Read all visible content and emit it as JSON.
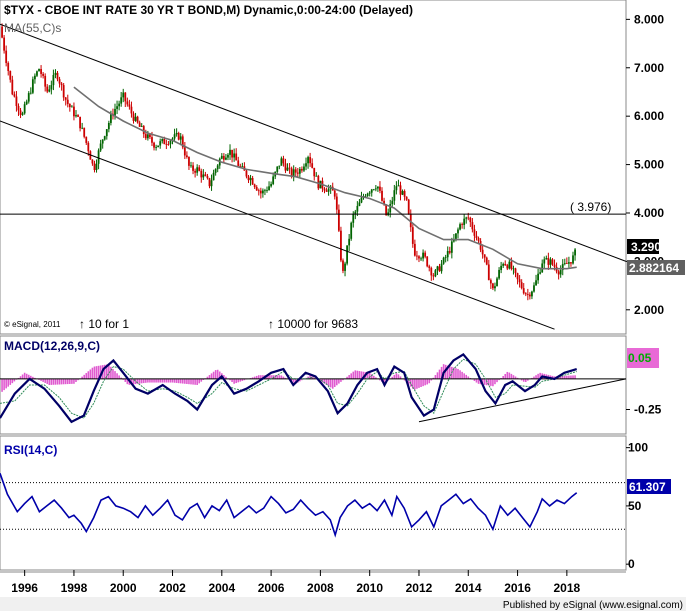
{
  "chart_data": [
    {
      "type": "candlestick",
      "title": "$TYX - CBOE INT RATE 30 YR T BOND,M) Dynamic,0:00-24:00 (Delayed)",
      "overlay_label": "MA(55,C)s",
      "copyright": "© eSignal, 2011",
      "split_notes": [
        "↑ 10 for 1",
        "↑ 10000 for 9683"
      ],
      "ylim": [
        1.5,
        8.4
      ],
      "yticks": [
        "8.000",
        "7.000",
        "6.000",
        "5.000",
        "4.000",
        "3.000",
        "2.000"
      ],
      "horizontal_level": 3.976,
      "horizontal_level_label": "( 3.976)",
      "last_price_label": "3.290",
      "ma_value_label": "2.882164",
      "channel_lines": {
        "upper": [
          [
            1995.0,
            7.9
          ],
          [
            2020.4,
            3.0
          ]
        ],
        "lower": [
          [
            1995.0,
            5.9
          ],
          [
            2017.5,
            1.6
          ]
        ]
      },
      "price_path": [
        [
          1995.0,
          7.85
        ],
        [
          1995.5,
          6.5
        ],
        [
          1995.9,
          6.0
        ],
        [
          1996.4,
          6.8
        ],
        [
          1996.6,
          7.0
        ],
        [
          1996.9,
          6.5
        ],
        [
          1997.3,
          6.9
        ],
        [
          1997.7,
          6.3
        ],
        [
          1998.2,
          5.9
        ],
        [
          1998.6,
          5.3
        ],
        [
          1998.8,
          4.9
        ],
        [
          1999.2,
          5.6
        ],
        [
          1999.6,
          6.1
        ],
        [
          2000.0,
          6.4
        ],
        [
          2000.5,
          5.9
        ],
        [
          2000.9,
          5.6
        ],
        [
          2001.3,
          5.4
        ],
        [
          2001.8,
          5.5
        ],
        [
          2002.3,
          5.6
        ],
        [
          2002.7,
          4.9
        ],
        [
          2003.0,
          4.9
        ],
        [
          2003.5,
          4.6
        ],
        [
          2003.9,
          5.1
        ],
        [
          2004.3,
          5.3
        ],
        [
          2004.8,
          4.9
        ],
        [
          2005.2,
          4.7
        ],
        [
          2005.6,
          4.4
        ],
        [
          2006.0,
          4.6
        ],
        [
          2006.4,
          5.1
        ],
        [
          2006.8,
          4.8
        ],
        [
          2007.2,
          4.9
        ],
        [
          2007.5,
          5.2
        ],
        [
          2007.9,
          4.6
        ],
        [
          2008.3,
          4.5
        ],
        [
          2008.6,
          4.4
        ],
        [
          2008.9,
          2.7
        ],
        [
          2009.3,
          3.9
        ],
        [
          2009.8,
          4.4
        ],
        [
          2010.3,
          4.6
        ],
        [
          2010.7,
          3.9
        ],
        [
          2011.1,
          4.6
        ],
        [
          2011.5,
          4.2
        ],
        [
          2011.8,
          3.2
        ],
        [
          2012.2,
          3.1
        ],
        [
          2012.6,
          2.7
        ],
        [
          2013.0,
          3.0
        ],
        [
          2013.4,
          3.4
        ],
        [
          2013.7,
          3.8
        ],
        [
          2014.0,
          3.9
        ],
        [
          2014.5,
          3.3
        ],
        [
          2015.0,
          2.4
        ],
        [
          2015.4,
          3.0
        ],
        [
          2015.7,
          2.9
        ],
        [
          2016.0,
          2.6
        ],
        [
          2016.4,
          2.3
        ],
        [
          2016.7,
          2.5
        ],
        [
          2017.0,
          3.0
        ],
        [
          2017.3,
          3.0
        ],
        [
          2017.7,
          2.8
        ],
        [
          2018.1,
          3.0
        ],
        [
          2018.3,
          3.1
        ],
        [
          2018.4,
          3.29
        ]
      ],
      "ma55_path": [
        [
          1998.0,
          6.6
        ],
        [
          1999.0,
          6.2
        ],
        [
          2000.0,
          5.9
        ],
        [
          2001.0,
          5.65
        ],
        [
          2002.0,
          5.5
        ],
        [
          2003.0,
          5.25
        ],
        [
          2004.0,
          5.05
        ],
        [
          2005.0,
          4.9
        ],
        [
          2006.0,
          4.82
        ],
        [
          2007.0,
          4.75
        ],
        [
          2008.0,
          4.6
        ],
        [
          2009.0,
          4.42
        ],
        [
          2010.0,
          4.3
        ],
        [
          2011.0,
          4.1
        ],
        [
          2012.0,
          3.68
        ],
        [
          2013.0,
          3.45
        ],
        [
          2014.0,
          3.45
        ],
        [
          2015.0,
          3.25
        ],
        [
          2016.0,
          2.95
        ],
        [
          2017.0,
          2.85
        ],
        [
          2018.0,
          2.85
        ],
        [
          2018.4,
          2.88
        ]
      ]
    },
    {
      "type": "line",
      "title": "MACD(12,26,9,C)",
      "ylim": [
        -0.45,
        0.35
      ],
      "yticks": [
        "-0.25"
      ],
      "value_label": "0.05",
      "channel_line": [
        [
          2012.0,
          -0.35
        ],
        [
          2020.4,
          0.0
        ]
      ],
      "macd_path": [
        [
          1995.0,
          -0.32
        ],
        [
          1995.6,
          -0.12
        ],
        [
          1996.2,
          0.0
        ],
        [
          1996.8,
          -0.08
        ],
        [
          1997.4,
          -0.22
        ],
        [
          1997.9,
          -0.35
        ],
        [
          1998.4,
          -0.3
        ],
        [
          1998.8,
          -0.1
        ],
        [
          1999.2,
          0.08
        ],
        [
          1999.6,
          0.15
        ],
        [
          2000.0,
          0.05
        ],
        [
          2000.5,
          -0.08
        ],
        [
          2001.0,
          -0.12
        ],
        [
          2001.6,
          -0.05
        ],
        [
          2002.1,
          -0.12
        ],
        [
          2002.6,
          -0.18
        ],
        [
          2003.0,
          -0.25
        ],
        [
          2003.6,
          -0.05
        ],
        [
          2004.0,
          0.02
        ],
        [
          2004.5,
          -0.12
        ],
        [
          2005.0,
          -0.08
        ],
        [
          2005.5,
          -0.02
        ],
        [
          2006.0,
          0.05
        ],
        [
          2006.5,
          0.08
        ],
        [
          2006.9,
          -0.05
        ],
        [
          2007.4,
          0.05
        ],
        [
          2007.8,
          0.02
        ],
        [
          2008.3,
          -0.1
        ],
        [
          2008.7,
          -0.28
        ],
        [
          2009.1,
          -0.2
        ],
        [
          2009.5,
          -0.05
        ],
        [
          2009.9,
          0.05
        ],
        [
          2010.3,
          0.08
        ],
        [
          2010.6,
          -0.05
        ],
        [
          2011.0,
          0.1
        ],
        [
          2011.4,
          0.05
        ],
        [
          2011.7,
          -0.15
        ],
        [
          2012.2,
          -0.3
        ],
        [
          2012.6,
          -0.25
        ],
        [
          2013.0,
          0.05
        ],
        [
          2013.4,
          0.15
        ],
        [
          2013.8,
          0.2
        ],
        [
          2014.3,
          0.08
        ],
        [
          2014.7,
          -0.1
        ],
        [
          2015.1,
          -0.2
        ],
        [
          2015.5,
          -0.05
        ],
        [
          2015.8,
          -0.02
        ],
        [
          2016.3,
          -0.1
        ],
        [
          2016.7,
          -0.05
        ],
        [
          2017.0,
          0.02
        ],
        [
          2017.5,
          0.0
        ],
        [
          2017.9,
          0.05
        ],
        [
          2018.4,
          0.08
        ]
      ],
      "signal_path": [
        [
          1995.0,
          -0.2
        ],
        [
          1995.6,
          -0.18
        ],
        [
          1996.2,
          -0.05
        ],
        [
          1996.8,
          -0.05
        ],
        [
          1997.4,
          -0.15
        ],
        [
          1997.9,
          -0.28
        ],
        [
          1998.4,
          -0.32
        ],
        [
          1998.8,
          -0.2
        ],
        [
          1999.2,
          -0.02
        ],
        [
          1999.6,
          0.1
        ],
        [
          2000.0,
          0.08
        ],
        [
          2000.5,
          -0.02
        ],
        [
          2001.0,
          -0.1
        ],
        [
          2001.6,
          -0.08
        ],
        [
          2002.1,
          -0.1
        ],
        [
          2002.6,
          -0.15
        ],
        [
          2003.0,
          -0.2
        ],
        [
          2003.6,
          -0.12
        ],
        [
          2004.0,
          -0.03
        ],
        [
          2004.5,
          -0.08
        ],
        [
          2005.0,
          -0.1
        ],
        [
          2005.5,
          -0.05
        ],
        [
          2006.0,
          0.0
        ],
        [
          2006.5,
          0.06
        ],
        [
          2006.9,
          0.0
        ],
        [
          2007.4,
          0.0
        ],
        [
          2007.8,
          0.02
        ],
        [
          2008.3,
          -0.05
        ],
        [
          2008.7,
          -0.2
        ],
        [
          2009.1,
          -0.22
        ],
        [
          2009.5,
          -0.12
        ],
        [
          2009.9,
          0.0
        ],
        [
          2010.3,
          0.06
        ],
        [
          2010.6,
          0.0
        ],
        [
          2011.0,
          0.05
        ],
        [
          2011.4,
          0.06
        ],
        [
          2011.7,
          -0.05
        ],
        [
          2012.2,
          -0.22
        ],
        [
          2012.6,
          -0.28
        ],
        [
          2013.0,
          -0.1
        ],
        [
          2013.4,
          0.08
        ],
        [
          2013.8,
          0.16
        ],
        [
          2014.3,
          0.12
        ],
        [
          2014.7,
          0.0
        ],
        [
          2015.1,
          -0.15
        ],
        [
          2015.5,
          -0.12
        ],
        [
          2015.8,
          -0.05
        ],
        [
          2016.3,
          -0.06
        ],
        [
          2016.7,
          -0.07
        ],
        [
          2017.0,
          -0.02
        ],
        [
          2017.5,
          0.0
        ],
        [
          2017.9,
          0.03
        ],
        [
          2018.4,
          0.06
        ]
      ],
      "histogram_path": [
        [
          1995.0,
          -0.12
        ],
        [
          1996.0,
          0.05
        ],
        [
          1997.0,
          -0.05
        ],
        [
          1998.0,
          -0.04
        ],
        [
          1998.8,
          0.1
        ],
        [
          1999.4,
          0.12
        ],
        [
          2000.2,
          -0.05
        ],
        [
          2001.0,
          -0.03
        ],
        [
          2002.0,
          -0.03
        ],
        [
          2003.0,
          -0.05
        ],
        [
          2003.8,
          0.08
        ],
        [
          2004.5,
          -0.04
        ],
        [
          2005.5,
          0.03
        ],
        [
          2006.4,
          0.03
        ],
        [
          2007.0,
          -0.04
        ],
        [
          2007.6,
          0.03
        ],
        [
          2008.5,
          -0.08
        ],
        [
          2009.4,
          0.07
        ],
        [
          2010.0,
          0.05
        ],
        [
          2010.6,
          -0.04
        ],
        [
          2011.1,
          0.05
        ],
        [
          2011.8,
          -0.09
        ],
        [
          2012.4,
          -0.04
        ],
        [
          2013.0,
          0.12
        ],
        [
          2013.6,
          0.08
        ],
        [
          2014.4,
          -0.04
        ],
        [
          2015.0,
          -0.06
        ],
        [
          2015.6,
          0.06
        ],
        [
          2016.3,
          -0.03
        ],
        [
          2016.9,
          0.05
        ],
        [
          2017.5,
          0.02
        ],
        [
          2018.4,
          0.03
        ]
      ]
    },
    {
      "type": "line",
      "title": "RSI(14,C)",
      "ylim": [
        -5,
        110
      ],
      "yticks": [
        "100",
        "50",
        "0"
      ],
      "levels": [
        70,
        30
      ],
      "value_label": "61.307",
      "rsi_path": [
        [
          1995.0,
          78
        ],
        [
          1995.3,
          60
        ],
        [
          1995.7,
          45
        ],
        [
          1996.0,
          52
        ],
        [
          1996.3,
          58
        ],
        [
          1996.6,
          45
        ],
        [
          1996.9,
          50
        ],
        [
          1997.2,
          55
        ],
        [
          1997.5,
          48
        ],
        [
          1997.8,
          40
        ],
        [
          1998.0,
          42
        ],
        [
          1998.3,
          35
        ],
        [
          1998.5,
          28
        ],
        [
          1998.8,
          40
        ],
        [
          1999.1,
          55
        ],
        [
          1999.4,
          58
        ],
        [
          1999.7,
          50
        ],
        [
          2000.0,
          48
        ],
        [
          2000.3,
          45
        ],
        [
          2000.6,
          40
        ],
        [
          2000.9,
          50
        ],
        [
          2001.2,
          42
        ],
        [
          2001.5,
          48
        ],
        [
          2001.8,
          55
        ],
        [
          2002.1,
          42
        ],
        [
          2002.4,
          38
        ],
        [
          2002.7,
          48
        ],
        [
          2003.0,
          52
        ],
        [
          2003.3,
          40
        ],
        [
          2003.6,
          50
        ],
        [
          2003.9,
          46
        ],
        [
          2004.2,
          55
        ],
        [
          2004.5,
          40
        ],
        [
          2004.8,
          45
        ],
        [
          2005.1,
          50
        ],
        [
          2005.4,
          44
        ],
        [
          2005.7,
          48
        ],
        [
          2006.0,
          58
        ],
        [
          2006.3,
          52
        ],
        [
          2006.6,
          44
        ],
        [
          2006.9,
          47
        ],
        [
          2007.2,
          55
        ],
        [
          2007.5,
          48
        ],
        [
          2007.8,
          42
        ],
        [
          2008.1,
          45
        ],
        [
          2008.4,
          38
        ],
        [
          2008.6,
          25
        ],
        [
          2008.8,
          40
        ],
        [
          2009.1,
          50
        ],
        [
          2009.4,
          55
        ],
        [
          2009.7,
          48
        ],
        [
          2010.0,
          52
        ],
        [
          2010.3,
          46
        ],
        [
          2010.6,
          55
        ],
        [
          2010.9,
          42
        ],
        [
          2011.1,
          58
        ],
        [
          2011.4,
          48
        ],
        [
          2011.7,
          32
        ],
        [
          2012.0,
          38
        ],
        [
          2012.3,
          45
        ],
        [
          2012.6,
          32
        ],
        [
          2012.9,
          50
        ],
        [
          2013.2,
          55
        ],
        [
          2013.5,
          60
        ],
        [
          2013.8,
          52
        ],
        [
          2014.1,
          56
        ],
        [
          2014.4,
          48
        ],
        [
          2014.7,
          42
        ],
        [
          2015.0,
          30
        ],
        [
          2015.3,
          50
        ],
        [
          2015.6,
          42
        ],
        [
          2015.9,
          48
        ],
        [
          2016.2,
          40
        ],
        [
          2016.5,
          32
        ],
        [
          2016.8,
          45
        ],
        [
          2017.0,
          56
        ],
        [
          2017.3,
          50
        ],
        [
          2017.6,
          55
        ],
        [
          2017.9,
          52
        ],
        [
          2018.2,
          58
        ],
        [
          2018.4,
          61.307
        ]
      ]
    }
  ],
  "x_axis": {
    "range": [
      1995.0,
      2020.4
    ],
    "ticks": [
      {
        "x": 1996,
        "label": "1996"
      },
      {
        "x": 1998,
        "label": "1998"
      },
      {
        "x": 2000,
        "label": "2000"
      },
      {
        "x": 2002,
        "label": "2002"
      },
      {
        "x": 2004,
        "label": "2004"
      },
      {
        "x": 2006,
        "label": "2006"
      },
      {
        "x": 2008,
        "label": "2008"
      },
      {
        "x": 2010,
        "label": "2010"
      },
      {
        "x": 2012,
        "label": "2012"
      },
      {
        "x": 2014,
        "label": "2014"
      },
      {
        "x": 2016,
        "label": "2016"
      },
      {
        "x": 2018,
        "label": "2018"
      }
    ]
  },
  "footer": "Published by eSignal (www.esignal.com)",
  "colors": {
    "up": "#006400",
    "down": "#cc0000",
    "ma": "#707070",
    "macd": "#000066",
    "signal": "#2e8b57",
    "histogram": "#e05ad0",
    "rsi": "#0000aa",
    "level_line": "#000000",
    "grid": "#c8c8c8",
    "price_box": "#000000",
    "macd_box": "#e86ad6"
  }
}
